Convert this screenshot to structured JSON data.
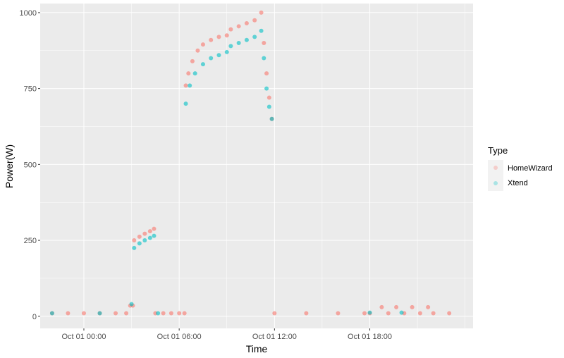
{
  "chart_data": {
    "type": "scatter",
    "xlabel": "Time",
    "ylabel": "Power(W)",
    "ylim": [
      -40,
      1030
    ],
    "xlim": [
      "2023-09-30 21:15",
      "2023-10-02 00:30"
    ],
    "x_ticks": [
      "Oct 01 00:00",
      "Oct 01 06:00",
      "Oct 01 12:00",
      "Oct 01 18:00"
    ],
    "y_ticks": [
      0,
      250,
      500,
      750,
      1000
    ],
    "grid": true,
    "legend": {
      "title": "Type",
      "position": "right"
    },
    "series": [
      {
        "name": "HomeWizard",
        "color": "#F8766D",
        "points": [
          [
            "2023-09-30 22:00",
            10
          ],
          [
            "2023-09-30 23:00",
            10
          ],
          [
            "2023-10-01 00:00",
            10
          ],
          [
            "2023-10-01 01:00",
            10
          ],
          [
            "2023-10-01 02:00",
            10
          ],
          [
            "2023-10-01 02:40",
            10
          ],
          [
            "2023-10-01 02:55",
            35
          ],
          [
            "2023-10-01 03:05",
            35
          ],
          [
            "2023-10-01 03:10",
            250
          ],
          [
            "2023-10-01 03:30",
            262
          ],
          [
            "2023-10-01 03:50",
            272
          ],
          [
            "2023-10-01 04:10",
            280
          ],
          [
            "2023-10-01 04:25",
            288
          ],
          [
            "2023-10-01 04:30",
            10
          ],
          [
            "2023-10-01 05:00",
            10
          ],
          [
            "2023-10-01 05:30",
            10
          ],
          [
            "2023-10-01 06:00",
            10
          ],
          [
            "2023-10-01 06:20",
            10
          ],
          [
            "2023-10-01 06:25",
            760
          ],
          [
            "2023-10-01 06:35",
            800
          ],
          [
            "2023-10-01 06:50",
            840
          ],
          [
            "2023-10-01 07:10",
            875
          ],
          [
            "2023-10-01 07:30",
            895
          ],
          [
            "2023-10-01 08:00",
            910
          ],
          [
            "2023-10-01 08:30",
            920
          ],
          [
            "2023-10-01 09:00",
            925
          ],
          [
            "2023-10-01 09:15",
            945
          ],
          [
            "2023-10-01 09:45",
            955
          ],
          [
            "2023-10-01 10:15",
            965
          ],
          [
            "2023-10-01 10:45",
            975
          ],
          [
            "2023-10-01 11:10",
            1000
          ],
          [
            "2023-10-01 11:20",
            900
          ],
          [
            "2023-10-01 11:30",
            800
          ],
          [
            "2023-10-01 11:40",
            720
          ],
          [
            "2023-10-01 11:50",
            650
          ],
          [
            "2023-10-01 12:00",
            10
          ],
          [
            "2023-10-01 14:00",
            10
          ],
          [
            "2023-10-01 16:00",
            10
          ],
          [
            "2023-10-01 17:40",
            10
          ],
          [
            "2023-10-01 18:00",
            10
          ],
          [
            "2023-10-01 18:45",
            30
          ],
          [
            "2023-10-01 19:10",
            10
          ],
          [
            "2023-10-01 19:40",
            30
          ],
          [
            "2023-10-01 20:10",
            10
          ],
          [
            "2023-10-01 20:40",
            30
          ],
          [
            "2023-10-01 21:10",
            10
          ],
          [
            "2023-10-01 21:40",
            30
          ],
          [
            "2023-10-01 22:00",
            10
          ],
          [
            "2023-10-01 23:00",
            10
          ]
        ]
      },
      {
        "name": "Xtend",
        "color": "#00BFC4",
        "points": [
          [
            "2023-09-30 22:00",
            10
          ],
          [
            "2023-10-01 01:00",
            10
          ],
          [
            "2023-10-01 03:00",
            40
          ],
          [
            "2023-10-01 03:10",
            225
          ],
          [
            "2023-10-01 03:30",
            240
          ],
          [
            "2023-10-01 03:50",
            250
          ],
          [
            "2023-10-01 04:10",
            258
          ],
          [
            "2023-10-01 04:25",
            265
          ],
          [
            "2023-10-01 04:40",
            10
          ],
          [
            "2023-10-01 06:25",
            700
          ],
          [
            "2023-10-01 06:40",
            760
          ],
          [
            "2023-10-01 07:00",
            800
          ],
          [
            "2023-10-01 07:30",
            830
          ],
          [
            "2023-10-01 08:00",
            850
          ],
          [
            "2023-10-01 08:30",
            860
          ],
          [
            "2023-10-01 09:00",
            870
          ],
          [
            "2023-10-01 09:15",
            890
          ],
          [
            "2023-10-01 09:45",
            900
          ],
          [
            "2023-10-01 10:15",
            910
          ],
          [
            "2023-10-01 10:45",
            920
          ],
          [
            "2023-10-01 11:10",
            940
          ],
          [
            "2023-10-01 11:20",
            850
          ],
          [
            "2023-10-01 11:30",
            750
          ],
          [
            "2023-10-01 11:40",
            690
          ],
          [
            "2023-10-01 11:50",
            650
          ],
          [
            "2023-10-01 18:00",
            12
          ],
          [
            "2023-10-01 20:00",
            12
          ]
        ]
      }
    ]
  }
}
